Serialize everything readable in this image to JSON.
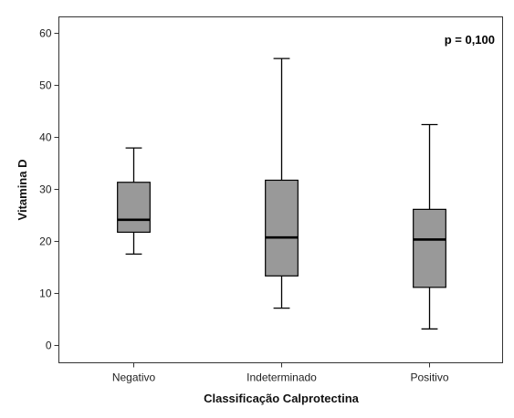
{
  "chart_data": {
    "type": "box",
    "categories": [
      "Negativo",
      "Indeterminado",
      "Positivo"
    ],
    "boxes": [
      {
        "category": "Negativo",
        "min": 17.4,
        "q1": 21.6,
        "median": 24.0,
        "q3": 31.2,
        "max": 37.8
      },
      {
        "category": "Indeterminado",
        "min": 7.0,
        "q1": 13.2,
        "median": 20.6,
        "q3": 31.6,
        "max": 55.0
      },
      {
        "category": "Positivo",
        "min": 3.0,
        "q1": 11.0,
        "median": 20.2,
        "q3": 26.0,
        "max": 42.3
      }
    ],
    "xlabel": "Classificação Calprotectina",
    "ylabel": "Vitamina D",
    "ylim": [
      -3.5,
      63
    ],
    "yticks": [
      0,
      10,
      20,
      30,
      40,
      50,
      60
    ],
    "annotation": "p = 0,100",
    "annotation_position": "top-right",
    "grid": false,
    "colors": {
      "box_fill": "#999999",
      "stroke": "#000000",
      "frame": "#333333"
    }
  }
}
